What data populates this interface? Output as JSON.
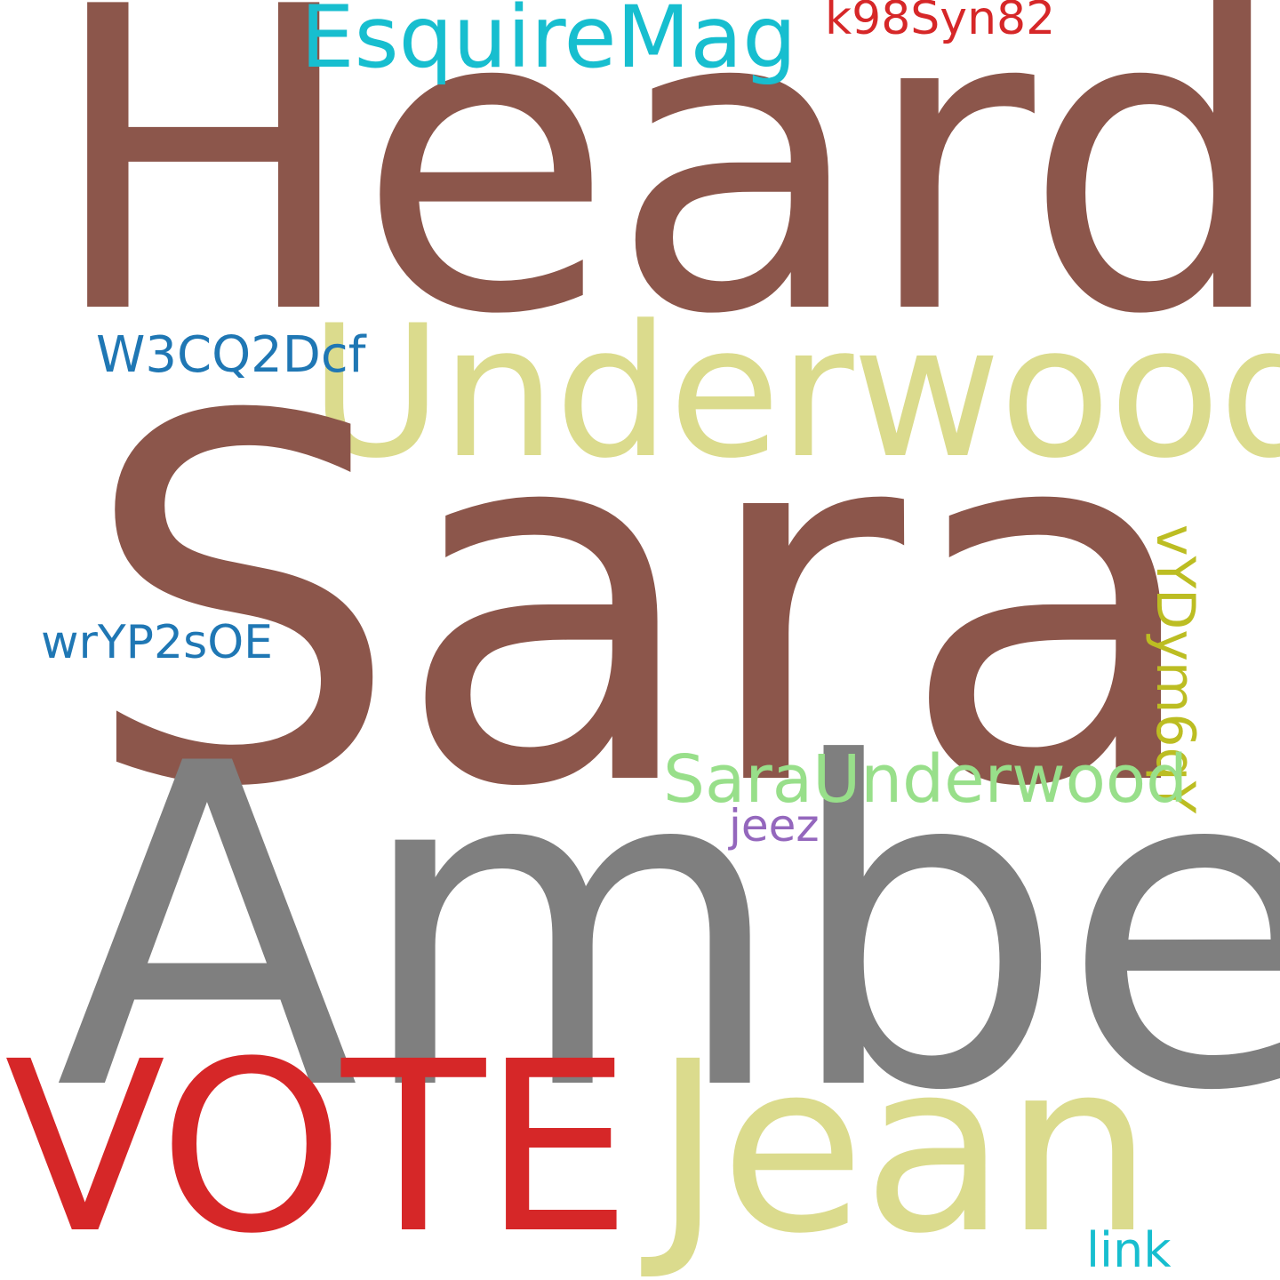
{
  "words": {
    "heard": {
      "text": "Heard",
      "color": "#8c564b"
    },
    "underwood": {
      "text": "Underwood",
      "color": "#dbdb8d"
    },
    "sara": {
      "text": "Sara",
      "color": "#8c564b"
    },
    "amber": {
      "text": "Amber",
      "color": "#7f7f7f"
    },
    "vote": {
      "text": "VOTE",
      "color": "#d62728"
    },
    "jean": {
      "text": "Jean",
      "color": "#dbdb8d"
    },
    "esquiremag": {
      "text": "EsquireMag",
      "color": "#17becf"
    },
    "k98syn82": {
      "text": "k98Syn82",
      "color": "#d62728"
    },
    "w3cq2dcf": {
      "text": "W3CQ2Dcf",
      "color": "#1f77b4"
    },
    "wryp2soe": {
      "text": "wrYP2sOE",
      "color": "#1f77b4"
    },
    "saraunderwood": {
      "text": "SaraUnderwood",
      "color": "#98df8a"
    },
    "jeez": {
      "text": "jeez",
      "color": "#9467bd"
    },
    "link": {
      "text": "link",
      "color": "#17becf"
    },
    "vydym6qy": {
      "text": "vYDym6qY",
      "color": "#bcbd22"
    }
  }
}
